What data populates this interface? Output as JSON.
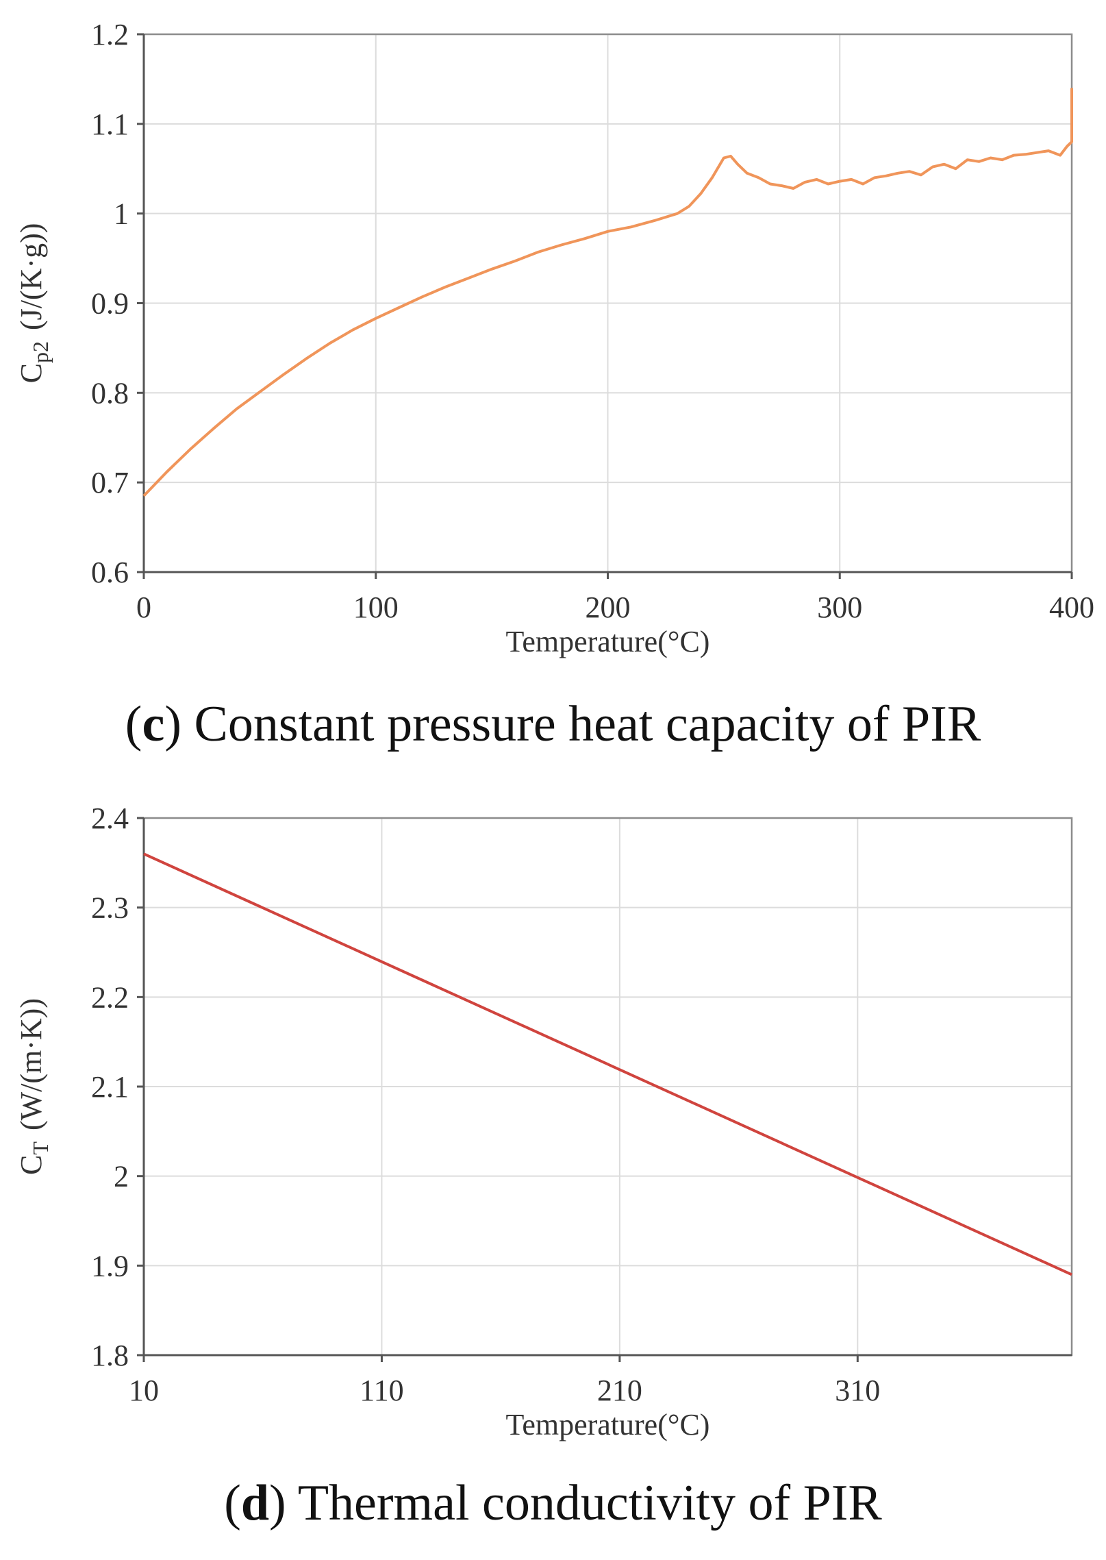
{
  "chart_data": [
    {
      "type": "line",
      "panel_letter": "c",
      "caption": "Constant pressure heat capacity of PIR",
      "xlabel": "Temperature(°C)",
      "ylabel_main": "C",
      "ylabel_sub": "p2",
      "ylabel_unit": "(J/(K·g))",
      "xlim": [
        0,
        400
      ],
      "ylim": [
        0.6,
        1.2
      ],
      "xticks": [
        "0",
        "100",
        "200",
        "300",
        "400"
      ],
      "yticks": [
        "0.6",
        "0.7",
        "0.8",
        "0.9",
        "1",
        "1.1",
        "1.2"
      ],
      "grid": true,
      "series": [
        {
          "color": "#f0955a",
          "x": [
            0,
            10,
            20,
            30,
            40,
            50,
            60,
            70,
            80,
            90,
            100,
            110,
            120,
            130,
            140,
            150,
            160,
            170,
            180,
            190,
            200,
            210,
            220,
            230,
            235,
            240,
            245,
            250,
            253,
            256,
            260,
            265,
            270,
            275,
            280,
            285,
            290,
            295,
            300,
            305,
            310,
            315,
            320,
            325,
            330,
            335,
            340,
            345,
            350,
            355,
            360,
            365,
            370,
            375,
            380,
            385,
            390,
            395,
            398,
            400,
            400
          ],
          "y": [
            0.685,
            0.712,
            0.737,
            0.76,
            0.782,
            0.801,
            0.82,
            0.838,
            0.855,
            0.87,
            0.883,
            0.895,
            0.907,
            0.918,
            0.928,
            0.938,
            0.947,
            0.957,
            0.965,
            0.972,
            0.98,
            0.985,
            0.992,
            1.0,
            1.008,
            1.022,
            1.04,
            1.062,
            1.064,
            1.055,
            1.045,
            1.04,
            1.033,
            1.031,
            1.028,
            1.035,
            1.038,
            1.033,
            1.036,
            1.038,
            1.033,
            1.04,
            1.042,
            1.045,
            1.047,
            1.043,
            1.052,
            1.055,
            1.05,
            1.06,
            1.058,
            1.062,
            1.06,
            1.065,
            1.066,
            1.068,
            1.07,
            1.065,
            1.075,
            1.08,
            1.14
          ]
        }
      ]
    },
    {
      "type": "line",
      "panel_letter": "d",
      "caption": "Thermal conductivity of PIR",
      "xlabel": "Temperature(°C)",
      "ylabel_main": "C",
      "ylabel_sub": "T",
      "ylabel_unit": "(W/(m·K))",
      "xlim": [
        10,
        400
      ],
      "ylim": [
        1.8,
        2.4
      ],
      "xticks": [
        "10",
        "110",
        "210",
        "310"
      ],
      "yticks": [
        "1.8",
        "1.9",
        "2",
        "2.1",
        "2.2",
        "2.3",
        "2.4"
      ],
      "grid": true,
      "series": [
        {
          "color": "#d0443e",
          "x": [
            10,
            400
          ],
          "y": [
            2.36,
            1.89
          ]
        }
      ]
    }
  ]
}
